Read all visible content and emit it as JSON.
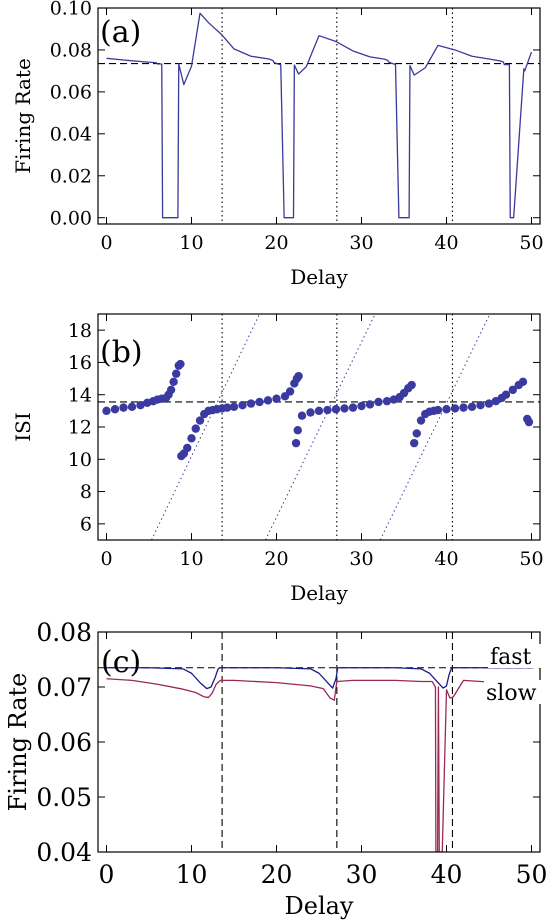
{
  "chart_data": [
    {
      "type": "line",
      "panel_label": "(a)",
      "xlabel": "Delay",
      "ylabel": "Firing Rate",
      "xlim": [
        -1,
        51
      ],
      "ylim": [
        -0.003,
        0.1
      ],
      "xticks": [
        0,
        10,
        20,
        30,
        40,
        50
      ],
      "yticks": [
        0.0,
        0.02,
        0.04,
        0.06,
        0.08,
        0.1
      ],
      "ytick_labels": [
        "0.00",
        "0.02",
        "0.04",
        "0.06",
        "0.08",
        "0.10"
      ],
      "grid": false,
      "reference_line": {
        "y": 0.0735,
        "style": "dashed"
      },
      "vertical_lines": [
        {
          "x": 13.6,
          "style": "dotted"
        },
        {
          "x": 27.1,
          "style": "dotted"
        },
        {
          "x": 40.7,
          "style": "dotted"
        }
      ],
      "series": [
        {
          "color": "#3a3a9a",
          "x": [
            0,
            2,
            4,
            5.5,
            5.9,
            6.0,
            6.5,
            6.6,
            7.0,
            8.4,
            8.5,
            9.1,
            10,
            11,
            12,
            13.5,
            15,
            17,
            19.1,
            19.6,
            19.7,
            20.4,
            20.5,
            20.9,
            22.0,
            22.1,
            22.6,
            23.5,
            25,
            27,
            29,
            31,
            32.7,
            33.1,
            33.2,
            33.9,
            34.0,
            34.4,
            35.6,
            35.7,
            36.2,
            37.5,
            39,
            41,
            43,
            45,
            46.3,
            46.7,
            46.8,
            47.4,
            47.5,
            47.9,
            49.1,
            49.2,
            49.6,
            50
          ],
          "y": [
            0.076,
            0.0752,
            0.0745,
            0.074,
            0.0738,
            0.0733,
            0.0733,
            0.0,
            0.0,
            0.0,
            0.0733,
            0.0635,
            0.0722,
            0.0975,
            0.093,
            0.0875,
            0.0805,
            0.077,
            0.0757,
            0.0749,
            0.074,
            0.073,
            0.073,
            0.0,
            0.0,
            0.0728,
            0.0685,
            0.072,
            0.0868,
            0.084,
            0.0795,
            0.0767,
            0.0756,
            0.075,
            0.0742,
            0.0732,
            0.0732,
            0.0,
            0.0,
            0.0725,
            0.068,
            0.0715,
            0.0822,
            0.08,
            0.077,
            0.0757,
            0.0748,
            0.0742,
            0.073,
            0.073,
            0.0,
            0.0,
            0.071,
            0.07,
            0.0745,
            0.079
          ]
        }
      ]
    },
    {
      "type": "scatter",
      "panel_label": "(b)",
      "xlabel": "Delay",
      "ylabel": "ISI",
      "xlim": [
        -1,
        51
      ],
      "ylim": [
        5,
        19
      ],
      "xticks": [
        0,
        10,
        20,
        30,
        40,
        50
      ],
      "yticks": [
        6,
        8,
        10,
        12,
        14,
        16,
        18
      ],
      "grid": false,
      "reference_line": {
        "y": 13.55,
        "style": "dashed"
      },
      "vertical_lines": [
        {
          "x": 13.6,
          "style": "dotted"
        },
        {
          "x": 27.1,
          "style": "dotted"
        },
        {
          "x": 40.7,
          "style": "dotted"
        }
      ],
      "diagonal_lines": [
        {
          "from": [
            5.3,
            5
          ],
          "to": [
            18.0,
            19
          ]
        },
        {
          "from": [
            18.7,
            5
          ],
          "to": [
            31.6,
            19
          ]
        },
        {
          "from": [
            32.2,
            5
          ],
          "to": [
            45.1,
            19
          ]
        }
      ],
      "series": [
        {
          "color": "#3a3aa0",
          "x": [
            0,
            1,
            2,
            3,
            4,
            4.8,
            5.5,
            6.0,
            6.5,
            7.0,
            7.3,
            7.6,
            7.9,
            8.2,
            8.5,
            8.7,
            8.8,
            9.1,
            9.5,
            10,
            10.5,
            11,
            11.5,
            12,
            12.5,
            13,
            13.6,
            14.2,
            15,
            16,
            17,
            18,
            19,
            20,
            21,
            21.6,
            22.1,
            22.4,
            22.6,
            22.3,
            22.5,
            23,
            24,
            25,
            26,
            27,
            28,
            29,
            30,
            31,
            32,
            33,
            33.8,
            34.5,
            35.0,
            35.5,
            35.9,
            36.2,
            36.5,
            37,
            37.5,
            38.0,
            38.5,
            39,
            40,
            41,
            42,
            43,
            44,
            45,
            45.8,
            46.5,
            47,
            47.8,
            48.5,
            49,
            49.5,
            49.7
          ],
          "y": [
            13.0,
            13.1,
            13.2,
            13.25,
            13.35,
            13.5,
            13.6,
            13.7,
            13.75,
            13.8,
            14.0,
            14.3,
            14.8,
            15.3,
            15.8,
            15.9,
            10.2,
            10.35,
            10.7,
            11.3,
            11.9,
            12.4,
            12.8,
            13.0,
            13.05,
            13.1,
            13.15,
            13.2,
            13.25,
            13.35,
            13.45,
            13.55,
            13.65,
            13.75,
            13.9,
            14.2,
            14.7,
            15.0,
            15.15,
            11.0,
            11.8,
            12.7,
            12.9,
            13.0,
            13.05,
            13.1,
            13.15,
            13.2,
            13.3,
            13.4,
            13.55,
            13.6,
            13.7,
            13.85,
            14.1,
            14.4,
            14.6,
            11.0,
            11.6,
            12.4,
            12.8,
            12.95,
            13.0,
            13.05,
            13.1,
            13.15,
            13.2,
            13.25,
            13.35,
            13.45,
            13.6,
            13.8,
            14.0,
            14.3,
            14.6,
            14.8,
            12.5,
            12.3
          ]
        }
      ]
    },
    {
      "type": "line",
      "panel_label": "(c)",
      "xlabel": "Delay",
      "ylabel": "Firing Rate",
      "xlim": [
        -1,
        51
      ],
      "ylim": [
        0.04,
        0.08
      ],
      "xticks": [
        0,
        10,
        20,
        30,
        40,
        50
      ],
      "yticks": [
        0.04,
        0.05,
        0.06,
        0.07,
        0.08
      ],
      "grid": false,
      "reference_line": {
        "y": 0.0735,
        "style": "dashed"
      },
      "vertical_lines": [
        {
          "x": 13.6,
          "style": "dashed"
        },
        {
          "x": 27.1,
          "style": "dashed"
        },
        {
          "x": 40.7,
          "style": "dashed"
        }
      ],
      "series": [
        {
          "name": "fast",
          "color": "#1a1a8c",
          "x": [
            0,
            5,
            9,
            10,
            11,
            11.8,
            12.3,
            12.8,
            13.1,
            13.3,
            15,
            20,
            24,
            25,
            26,
            26.6,
            27.0,
            27.2,
            29,
            34,
            37,
            38,
            39,
            39.6,
            40.0,
            40.3,
            40.6,
            42,
            47,
            50
          ],
          "y": [
            0.0735,
            0.0735,
            0.0733,
            0.0725,
            0.0708,
            0.0697,
            0.07,
            0.0718,
            0.0732,
            0.0735,
            0.0735,
            0.0735,
            0.0733,
            0.0725,
            0.0708,
            0.0698,
            0.0715,
            0.0735,
            0.0735,
            0.0735,
            0.0733,
            0.0725,
            0.0708,
            0.0698,
            0.0702,
            0.0722,
            0.0735,
            0.0735,
            0.0735,
            0.0735
          ]
        },
        {
          "name": "slow",
          "color": "#9a2a55",
          "x": [
            0,
            3,
            6,
            9,
            10.5,
            11.5,
            12.0,
            12.4,
            12.9,
            13.4,
            15,
            20,
            24,
            25.5,
            26.3,
            26.8,
            27.1,
            29,
            34,
            37,
            38.3,
            38.7,
            38.75,
            38.95,
            39.05,
            39.15,
            39.5,
            40,
            40.4,
            40.8,
            42,
            46,
            50
          ],
          "y": [
            0.0715,
            0.0712,
            0.0705,
            0.0696,
            0.069,
            0.0682,
            0.0681,
            0.0688,
            0.0705,
            0.0712,
            0.0712,
            0.0708,
            0.0702,
            0.0697,
            0.068,
            0.0676,
            0.071,
            0.0712,
            0.0712,
            0.071,
            0.071,
            0.07,
            0.04,
            0.04,
            0.07,
            0.04,
            0.04,
            0.0695,
            0.068,
            0.0682,
            0.0712,
            0.0708,
            0.0703
          ]
        }
      ]
    }
  ]
}
